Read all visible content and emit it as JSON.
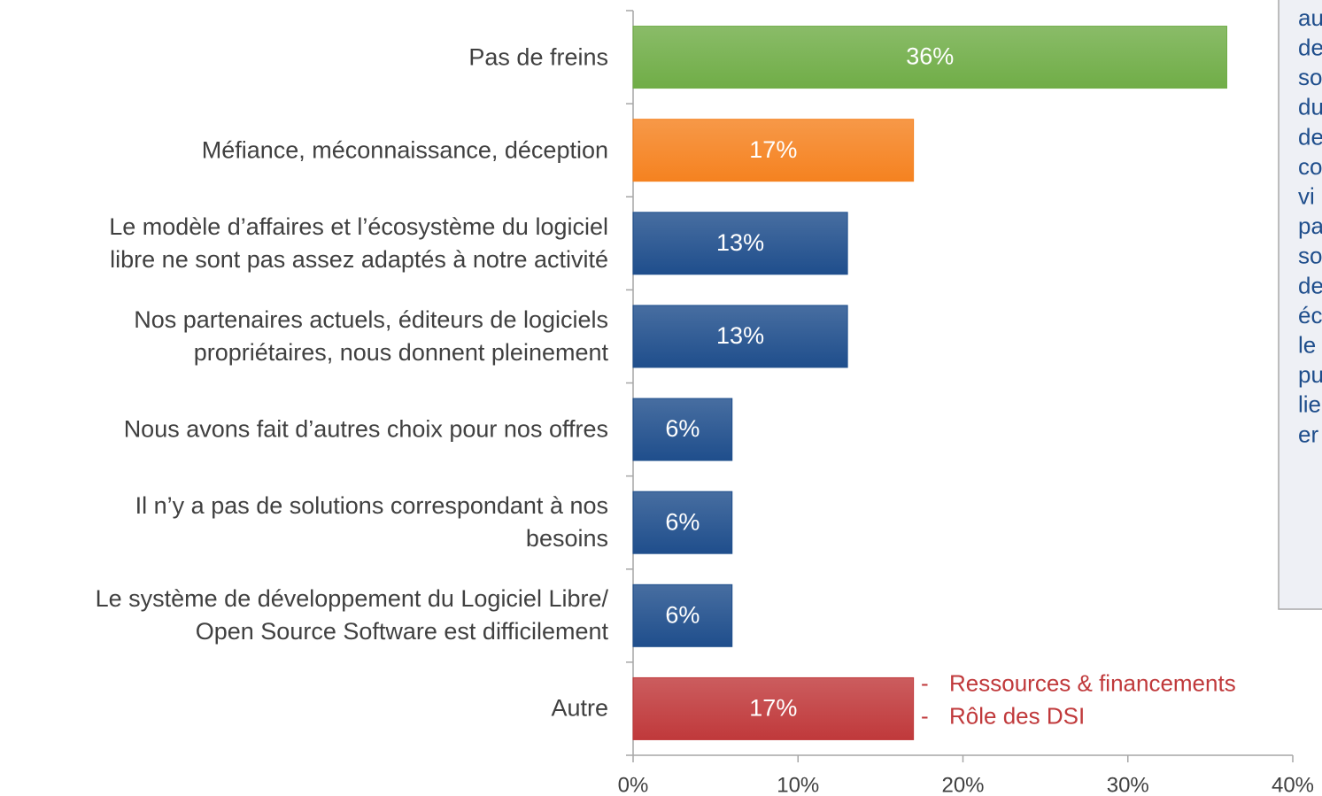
{
  "chart_data": {
    "type": "barh",
    "categories": [
      "Pas de freins",
      "Méfiance, méconnaissance, déception",
      "Le modèle d’affaires et l’écosystème du logiciel\nlibre ne sont pas assez adaptés à notre activité",
      "Nos partenaires actuels, éditeurs de logiciels\npropriétaires, nous donnent pleinement",
      "Nous avons fait d’autres choix pour nos offres",
      "Il n’y a pas de solutions correspondant à nos\nbesoins",
      "Le système de développement du Logiciel Libre/\nOpen Source Software est difficilement",
      "Autre"
    ],
    "values": [
      36,
      17,
      13,
      13,
      6,
      6,
      6,
      17
    ],
    "value_labels": [
      "36%",
      "17%",
      "13%",
      "13%",
      "6%",
      "6%",
      "6%",
      "17%"
    ],
    "colors": [
      "#70ad47",
      "#f58220",
      "#1f4e8c",
      "#1f4e8c",
      "#1f4e8c",
      "#1f4e8c",
      "#1f4e8c",
      "#c0393b"
    ],
    "xlim": [
      0,
      40
    ],
    "xticks": [
      {
        "value": 0,
        "label": "0%"
      },
      {
        "value": 10,
        "label": "10%"
      },
      {
        "value": 20,
        "label": "20%"
      },
      {
        "value": 30,
        "label": "30%"
      },
      {
        "value": 40,
        "label": "40%"
      }
    ],
    "annotations": [
      {
        "bullet": "-",
        "text": "Ressources & financements"
      },
      {
        "bullet": "-",
        "text": "Rôle des DSI"
      }
    ],
    "side_note": [
      "au",
      "de",
      "so",
      "du",
      "de",
      "co",
      "vi",
      "pa",
      "so",
      "de",
      "éc",
      "le",
      "pu",
      "lie",
      "er"
    ]
  }
}
